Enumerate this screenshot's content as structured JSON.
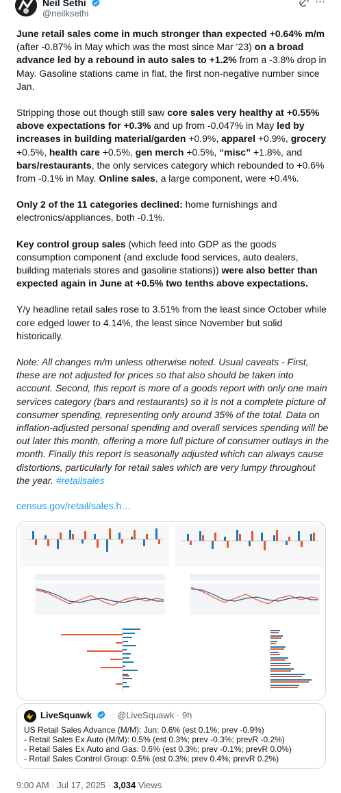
{
  "author": {
    "name": "Neil Sethi",
    "handle": "@neilksethi"
  },
  "tweet": {
    "p1": [
      {
        "t": "June retail sales come in much stronger than expected +0.64% m/m",
        "b": true
      },
      {
        "t": " (after -0.87% in May which was the most since Mar ‘23) ",
        "b": false
      },
      {
        "t": "on a broad advance led by a rebound in auto sales to +1.2%",
        "b": true
      },
      {
        "t": " from a -3.8% drop in May. Gasoline stations came in flat, the first non-negative number since Jan.",
        "b": false
      }
    ],
    "p2": [
      {
        "t": "Stripping those out though still saw ",
        "b": false
      },
      {
        "t": "core sales very healthy at +0.55% above expectations for +0.3%",
        "b": true
      },
      {
        "t": " and up from -0.047% in May ",
        "b": false
      },
      {
        "t": "led by increases in building material/garden",
        "b": true
      },
      {
        "t": " +0.9%, ",
        "b": false
      },
      {
        "t": "apparel",
        "b": true
      },
      {
        "t": " +0.9%, ",
        "b": false
      },
      {
        "t": "grocery",
        "b": true
      },
      {
        "t": " +0.5%, ",
        "b": false
      },
      {
        "t": "health care",
        "b": true
      },
      {
        "t": " +0.5%, ",
        "b": false
      },
      {
        "t": "gen merch",
        "b": true
      },
      {
        "t": " +0.5%, ",
        "b": false
      },
      {
        "t": "“misc”",
        "b": true
      },
      {
        "t": " +1.8%, and ",
        "b": false
      },
      {
        "t": "bars/restaurants",
        "b": true
      },
      {
        "t": ", the only services category which rebounded to +0.6% from -0.1% in May.  ",
        "b": false
      },
      {
        "t": "Online sales",
        "b": true
      },
      {
        "t": ", a large component, were +0.4%.",
        "b": false
      }
    ],
    "p3": [
      {
        "t": "Only 2 of the 11 categories declined:",
        "b": true
      },
      {
        "t": " home furnishings and electronics/appliances, both -0.1%.",
        "b": false
      }
    ],
    "p4": [
      {
        "t": "Key control group sales",
        "b": true
      },
      {
        "t": " (which feed into GDP as the goods consumption component (and exclude food services, auto dealers, building materials stores and gasoline stations)) ",
        "b": false
      },
      {
        "t": "were also better than expected again in June at +0.5% two tenths above expectations.",
        "b": true
      }
    ],
    "p5": "Y/y headline retail sales rose to 3.51% from the least since October while core edged lower to 4.14%, the least since November but solid historically.",
    "note": "Note: All changes m/m unless otherwise noted. Usual caveats - First, these are not adjusted for prices so that also should be taken into account. Second, this report is more of a goods report with only one main services category (bars and restaurants) so it is not a complete picture of consumer spending, representing only around 35% of the total. Data on inflation-adjusted personal spending and overall services spending will be out later this month, offering a more full picture of consumer outlays in the month. Finally this report is seasonally adjusted which can always cause distortions, particularly for retail sales which are very lumpy throughout the year. ",
    "hashtag": "#retailsales",
    "link": "census.gov/retail/sales.h…"
  },
  "quote": {
    "name": "LiveSquawk",
    "meta": "@LiveSquawk · 9h",
    "lines": [
      "US Retail Sales Advance (M/M): Jun: 0.6% (est 0.1%; prev -0.9%)",
      "- Retail Sales Ex Auto (M/M): 0.5% (est 0.3%; prev -0.3%; prevR -0.2%)",
      "- Retail Sales Ex Auto and Gas: 0.6% (est 0.3%; prev -0.1%; prevR 0.0%)",
      "- Retail Sales Control Group: 0.5% (est 0.3%; prev 0.4%; prevR 0.2%)"
    ]
  },
  "footer": {
    "time": "9:00 AM · Jul 17, 2025 · ",
    "views_count": "3,034",
    "views_label": " Views"
  },
  "colors": {
    "accent": "#1d9bf0",
    "verified": "#1d9bf0",
    "series_a": "#1f77b4",
    "series_b": "#e4572e",
    "muted": "#536471"
  },
  "icons": [
    "verified-badge-icon",
    "grok-icon",
    "more-icon"
  ]
}
